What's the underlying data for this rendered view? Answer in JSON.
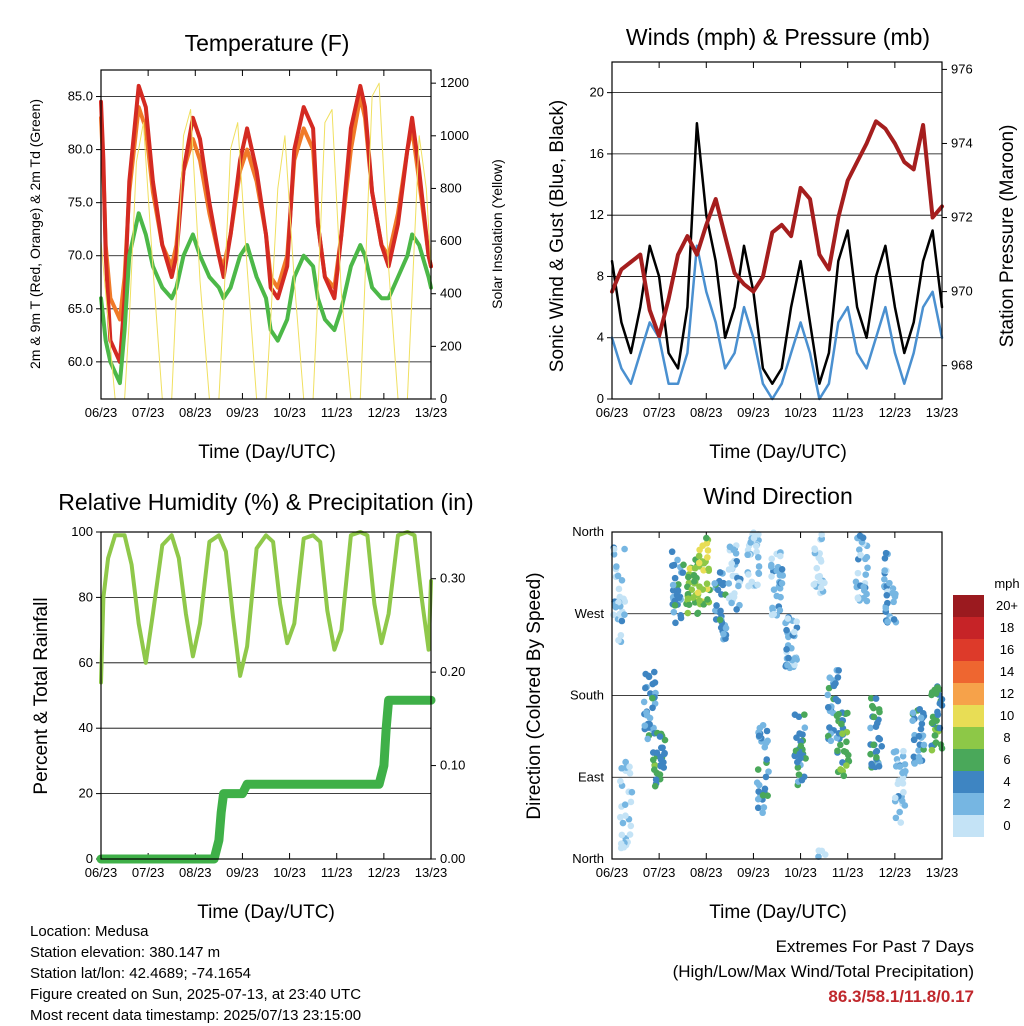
{
  "info": {
    "location": "Location: Medusa",
    "elevation": "Station elevation: 380.147 m",
    "latlon": "Station lat/lon: 42.4689; -74.1654",
    "created": "Figure created on Sun, 2025-07-13, at 23:40 UTC",
    "recent": "Most recent data timestamp: 2025/07/13 23:15:00"
  },
  "extremes": {
    "heading": "Extremes For Past 7 Days",
    "subheading": "(High/Low/Max Wind/Total Precipitation)",
    "values": "86.3/58.1/11.8/0.17"
  },
  "chart_data": [
    {
      "id": "temperature",
      "type": "line",
      "title": "Temperature (F)",
      "xlabel": "Time (Day/UTC)",
      "ylabel": "2m & 9m T (Red, Orange) & 2m Td (Green)",
      "ylabel2": "Solar Insolation (Yellow)",
      "x_ticks": [
        "06/23",
        "07/23",
        "08/23",
        "09/23",
        "10/23",
        "11/23",
        "12/23",
        "13/23"
      ],
      "xlim": [
        0,
        7
      ],
      "ylim": [
        56.5,
        87.5
      ],
      "y_ticks": [
        "60.0",
        "65.0",
        "70.0",
        "75.0",
        "80.0",
        "85.0"
      ],
      "ylim2": [
        0,
        1250
      ],
      "y2_ticks": [
        "0",
        "200",
        "400",
        "600",
        "800",
        "1000",
        "1200"
      ],
      "grid": "horizontal",
      "series": [
        {
          "color": "#f07a28",
          "axis": "left",
          "x": [
            0,
            0.05,
            0.1,
            0.2,
            0.4,
            0.5,
            0.6,
            0.8,
            0.95,
            1.1,
            1.3,
            1.5,
            1.6,
            1.75,
            1.95,
            2.1,
            2.3,
            2.5,
            2.6,
            2.75,
            2.95,
            3.1,
            3.3,
            3.5,
            3.6,
            3.75,
            3.95,
            4.1,
            4.3,
            4.5,
            4.6,
            4.75,
            4.95,
            5.1,
            5.3,
            5.5,
            5.6,
            5.75,
            5.95,
            6.1,
            6.3,
            6.5,
            6.6,
            6.75,
            6.95,
            7.0
          ],
          "y": [
            83,
            78,
            71,
            66,
            64,
            68,
            76,
            84,
            82,
            76,
            71,
            69,
            71,
            78,
            81,
            79,
            74,
            70,
            69,
            72,
            78,
            80,
            77,
            72,
            68,
            67,
            70,
            79,
            82,
            80,
            73,
            68,
            67,
            72,
            80,
            85,
            83,
            76,
            71,
            70,
            74,
            80,
            82,
            77,
            70,
            69
          ]
        },
        {
          "color": "#d42a22",
          "axis": "left",
          "x": [
            0,
            0.05,
            0.1,
            0.2,
            0.4,
            0.5,
            0.6,
            0.8,
            0.95,
            1.1,
            1.3,
            1.5,
            1.6,
            1.75,
            1.95,
            2.1,
            2.3,
            2.5,
            2.6,
            2.75,
            2.95,
            3.1,
            3.3,
            3.5,
            3.6,
            3.75,
            3.95,
            4.1,
            4.3,
            4.5,
            4.6,
            4.75,
            4.95,
            5.1,
            5.3,
            5.5,
            5.6,
            5.75,
            5.95,
            6.1,
            6.3,
            6.5,
            6.6,
            6.75,
            6.95,
            7.0
          ],
          "y": [
            84.5,
            79,
            70,
            62,
            60,
            66,
            77,
            86,
            84,
            77,
            71,
            68,
            70,
            78,
            83,
            81,
            75,
            70,
            68,
            72,
            79,
            82,
            78,
            72,
            67,
            66,
            69,
            80,
            84,
            82,
            73,
            68,
            66,
            72,
            82,
            86,
            84,
            76,
            71,
            69,
            73,
            80,
            83,
            78,
            70,
            69
          ]
        },
        {
          "color": "#4cb848",
          "axis": "left",
          "x": [
            0,
            0.05,
            0.1,
            0.2,
            0.4,
            0.5,
            0.6,
            0.8,
            0.95,
            1.1,
            1.3,
            1.5,
            1.6,
            1.75,
            1.95,
            2.1,
            2.3,
            2.5,
            2.6,
            2.75,
            2.95,
            3.1,
            3.3,
            3.5,
            3.6,
            3.75,
            3.95,
            4.1,
            4.3,
            4.5,
            4.6,
            4.75,
            4.95,
            5.1,
            5.3,
            5.5,
            5.6,
            5.75,
            5.95,
            6.1,
            6.3,
            6.5,
            6.6,
            6.75,
            6.95,
            7.0
          ],
          "y": [
            66,
            64,
            62,
            60,
            58,
            63,
            70,
            74,
            72,
            69,
            67,
            66,
            67,
            70,
            72,
            70,
            68,
            67,
            66,
            67,
            70,
            71,
            68,
            66,
            63,
            62,
            64,
            68,
            70,
            69,
            66,
            64,
            63,
            65,
            69,
            71,
            70,
            67,
            66,
            66,
            68,
            70,
            72,
            71,
            68,
            67
          ]
        },
        {
          "color": "#f0e060",
          "axis": "right",
          "x": [
            0,
            0.3,
            0.5,
            0.6,
            0.75,
            0.9,
            1.1,
            1.3,
            1.5,
            1.6,
            1.75,
            1.9,
            2.1,
            2.3,
            2.5,
            2.6,
            2.75,
            2.9,
            3.1,
            3.3,
            3.5,
            3.6,
            3.75,
            3.9,
            4.1,
            4.3,
            4.5,
            4.6,
            4.75,
            4.9,
            5.1,
            5.3,
            5.5,
            5.6,
            5.75,
            5.9,
            6.1,
            6.3,
            6.5,
            6.6,
            6.75,
            6.9,
            7.0
          ],
          "y": [
            600,
            0,
            0,
            300,
            900,
            1050,
            500,
            0,
            0,
            400,
            1000,
            1100,
            450,
            0,
            0,
            350,
            950,
            1050,
            500,
            0,
            0,
            300,
            800,
            1000,
            450,
            0,
            0,
            400,
            1050,
            1100,
            400,
            0,
            0,
            450,
            1150,
            1200,
            500,
            0,
            0,
            400,
            1000,
            800,
            500
          ]
        }
      ]
    },
    {
      "id": "winds",
      "type": "line",
      "title": "Winds (mph) & Pressure (mb)",
      "xlabel": "Time (Day/UTC)",
      "ylabel": "Sonic Wind & Gust (Blue, Black)",
      "ylabel2": "Station Pressure (Maroon)",
      "x_ticks": [
        "06/23",
        "07/23",
        "08/23",
        "09/23",
        "10/23",
        "11/23",
        "12/23",
        "13/23"
      ],
      "xlim": [
        0,
        7
      ],
      "ylim": [
        0,
        22
      ],
      "y_ticks": [
        "0",
        "4",
        "8",
        "12",
        "16",
        "20"
      ],
      "ylim2": [
        967.1,
        976.2
      ],
      "y2_ticks": [
        "968",
        "970",
        "972",
        "974",
        "976"
      ],
      "grid": "horizontal",
      "series": [
        {
          "color": "#000000",
          "axis": "left",
          "x": [
            0,
            0.2,
            0.4,
            0.6,
            0.8,
            1.0,
            1.2,
            1.4,
            1.6,
            1.8,
            2.0,
            2.2,
            2.4,
            2.6,
            2.8,
            3.0,
            3.2,
            3.4,
            3.6,
            3.8,
            4.0,
            4.2,
            4.4,
            4.6,
            4.8,
            5.0,
            5.2,
            5.4,
            5.6,
            5.8,
            6.0,
            6.2,
            6.4,
            6.6,
            6.8,
            7.0
          ],
          "y": [
            9,
            5,
            3,
            6,
            10,
            8,
            3,
            2,
            6,
            18,
            12,
            9,
            4,
            6,
            10,
            7,
            2,
            1,
            2,
            6,
            9,
            5,
            1,
            3,
            9,
            11,
            6,
            4,
            8,
            10,
            6,
            3,
            5,
            9,
            11,
            6
          ]
        },
        {
          "color": "#4a90d0",
          "axis": "left",
          "x": [
            0,
            0.2,
            0.4,
            0.6,
            0.8,
            1.0,
            1.2,
            1.4,
            1.6,
            1.8,
            2.0,
            2.2,
            2.4,
            2.6,
            2.8,
            3.0,
            3.2,
            3.4,
            3.6,
            3.8,
            4.0,
            4.2,
            4.4,
            4.6,
            4.8,
            5.0,
            5.2,
            5.4,
            5.6,
            5.8,
            6.0,
            6.2,
            6.4,
            6.6,
            6.8,
            7.0
          ],
          "y": [
            4,
            2,
            1,
            3,
            5,
            4,
            1,
            1,
            3,
            10,
            7,
            5,
            2,
            3,
            6,
            4,
            1,
            0,
            1,
            3,
            5,
            3,
            0,
            1,
            5,
            6,
            3,
            2,
            4,
            6,
            3,
            1,
            3,
            6,
            7,
            4
          ]
        },
        {
          "color": "#a51e1e",
          "axis": "right",
          "x": [
            0,
            0.2,
            0.4,
            0.6,
            0.8,
            1.0,
            1.2,
            1.4,
            1.6,
            1.8,
            2.0,
            2.2,
            2.4,
            2.6,
            2.8,
            3.0,
            3.2,
            3.4,
            3.6,
            3.8,
            4.0,
            4.2,
            4.4,
            4.6,
            4.8,
            5.0,
            5.2,
            5.4,
            5.6,
            5.8,
            6.0,
            6.2,
            6.4,
            6.6,
            6.8,
            7.0
          ],
          "y": [
            970,
            970.6,
            970.8,
            971,
            969.5,
            968.8,
            969.8,
            971,
            971.5,
            971,
            971.8,
            972.5,
            971.5,
            970.5,
            970.2,
            970,
            970.4,
            971.6,
            971.8,
            971.5,
            972.8,
            972.5,
            971,
            970.6,
            972,
            973,
            973.5,
            974,
            974.6,
            974.4,
            974,
            973.5,
            973.3,
            974.5,
            972,
            972.3
          ]
        }
      ]
    },
    {
      "id": "humidity",
      "type": "line",
      "title": "Relative Humidity (%) & Precipitation (in)",
      "xlabel": "Time (Day/UTC)",
      "ylabel": "Percent & Total Rainfall",
      "x_ticks": [
        "06/23",
        "07/23",
        "08/23",
        "09/23",
        "10/23",
        "11/23",
        "12/23",
        "13/23"
      ],
      "xlim": [
        0,
        7
      ],
      "ylim": [
        0,
        100
      ],
      "y_ticks": [
        "0",
        "20",
        "40",
        "60",
        "80",
        "100"
      ],
      "ylim2": [
        0,
        0.35
      ],
      "y2_ticks": [
        "0.00",
        "0.10",
        "0.20",
        "0.30"
      ],
      "grid": "horizontal",
      "series": [
        {
          "color": "#8fc84a",
          "axis": "left",
          "x": [
            0,
            0.05,
            0.15,
            0.3,
            0.5,
            0.65,
            0.8,
            0.95,
            1.1,
            1.3,
            1.5,
            1.65,
            1.8,
            1.95,
            2.1,
            2.3,
            2.5,
            2.65,
            2.8,
            2.95,
            3.1,
            3.3,
            3.5,
            3.65,
            3.8,
            3.95,
            4.1,
            4.3,
            4.5,
            4.65,
            4.8,
            4.95,
            5.1,
            5.3,
            5.5,
            5.65,
            5.8,
            5.95,
            6.1,
            6.3,
            6.5,
            6.65,
            6.8,
            6.95,
            7.0
          ],
          "y": [
            54,
            80,
            92,
            99,
            99,
            90,
            72,
            60,
            75,
            96,
            99,
            92,
            75,
            62,
            72,
            97,
            99,
            94,
            74,
            56,
            65,
            95,
            99,
            97,
            78,
            66,
            72,
            98,
            99,
            97,
            76,
            64,
            70,
            99,
            100,
            99,
            78,
            66,
            75,
            99,
            100,
            99,
            80,
            64,
            85
          ]
        },
        {
          "color": "#3fb048",
          "axis": "right",
          "x": [
            0,
            0.5,
            1.0,
            1.5,
            2.0,
            2.4,
            2.5,
            2.55,
            2.6,
            2.8,
            3.0,
            3.1,
            3.2,
            4.0,
            4.5,
            5.0,
            5.5,
            5.9,
            6.0,
            6.05,
            6.1,
            6.5,
            7.0
          ],
          "y": [
            0,
            0,
            0,
            0,
            0,
            0,
            0.02,
            0.05,
            0.07,
            0.07,
            0.07,
            0.08,
            0.08,
            0.08,
            0.08,
            0.08,
            0.08,
            0.08,
            0.1,
            0.14,
            0.17,
            0.17,
            0.17
          ]
        }
      ]
    },
    {
      "id": "direction",
      "type": "scatter",
      "title": "Wind Direction",
      "xlabel": "Time (Day/UTC)",
      "ylabel": "Direction (Colored By Speed)",
      "x_ticks": [
        "06/23",
        "07/23",
        "08/23",
        "09/23",
        "10/23",
        "11/23",
        "12/23",
        "13/23"
      ],
      "xlim": [
        0,
        7
      ],
      "ylim": [
        0,
        360
      ],
      "y_tick_labels": [
        "North",
        "East",
        "South",
        "West",
        "North"
      ],
      "grid": "horizontal",
      "colorbar": {
        "unit": "mph",
        "labels": [
          "20+",
          "18",
          "16",
          "14",
          "12",
          "10",
          "8",
          "6",
          "4",
          "2",
          "0"
        ],
        "colors": [
          "#9b1a1f",
          "#c62327",
          "#dd3a2a",
          "#ee6630",
          "#f6a24a",
          "#e8dd55",
          "#8dc847",
          "#4aa85a",
          "#3e85c2",
          "#76b6e2",
          "#c4e3f6"
        ]
      },
      "clusters": [
        {
          "x": 0.15,
          "dir": 290,
          "spread": 60,
          "speed": 2
        },
        {
          "x": 0.3,
          "dir": 60,
          "spread": 50,
          "speed": 1
        },
        {
          "x": 0.8,
          "dir": 170,
          "spread": 40,
          "speed": 4
        },
        {
          "x": 1.0,
          "dir": 110,
          "spread": 30,
          "speed": 6
        },
        {
          "x": 1.4,
          "dir": 300,
          "spread": 40,
          "speed": 4
        },
        {
          "x": 1.7,
          "dir": 300,
          "spread": 30,
          "speed": 8
        },
        {
          "x": 1.95,
          "dir": 315,
          "spread": 40,
          "speed": 9
        },
        {
          "x": 2.3,
          "dir": 280,
          "spread": 40,
          "speed": 4
        },
        {
          "x": 2.6,
          "dir": 310,
          "spread": 40,
          "speed": 2
        },
        {
          "x": 3.0,
          "dir": 330,
          "spread": 30,
          "speed": 1
        },
        {
          "x": 3.2,
          "dir": 100,
          "spread": 50,
          "speed": 4
        },
        {
          "x": 3.5,
          "dir": 300,
          "spread": 40,
          "speed": 2
        },
        {
          "x": 3.8,
          "dir": 240,
          "spread": 30,
          "speed": 3
        },
        {
          "x": 4.0,
          "dir": 120,
          "spread": 40,
          "speed": 5
        },
        {
          "x": 4.4,
          "dir": 330,
          "spread": 40,
          "speed": 1
        },
        {
          "x": 4.7,
          "dir": 170,
          "spread": 40,
          "speed": 4
        },
        {
          "x": 4.9,
          "dir": 130,
          "spread": 40,
          "speed": 6
        },
        {
          "x": 5.3,
          "dir": 320,
          "spread": 40,
          "speed": 2
        },
        {
          "x": 5.6,
          "dir": 140,
          "spread": 40,
          "speed": 5
        },
        {
          "x": 5.9,
          "dir": 300,
          "spread": 40,
          "speed": 3
        },
        {
          "x": 6.1,
          "dir": 80,
          "spread": 40,
          "speed": 2
        },
        {
          "x": 6.5,
          "dir": 135,
          "spread": 30,
          "speed": 4
        },
        {
          "x": 6.9,
          "dir": 150,
          "spread": 40,
          "speed": 6
        }
      ]
    }
  ]
}
